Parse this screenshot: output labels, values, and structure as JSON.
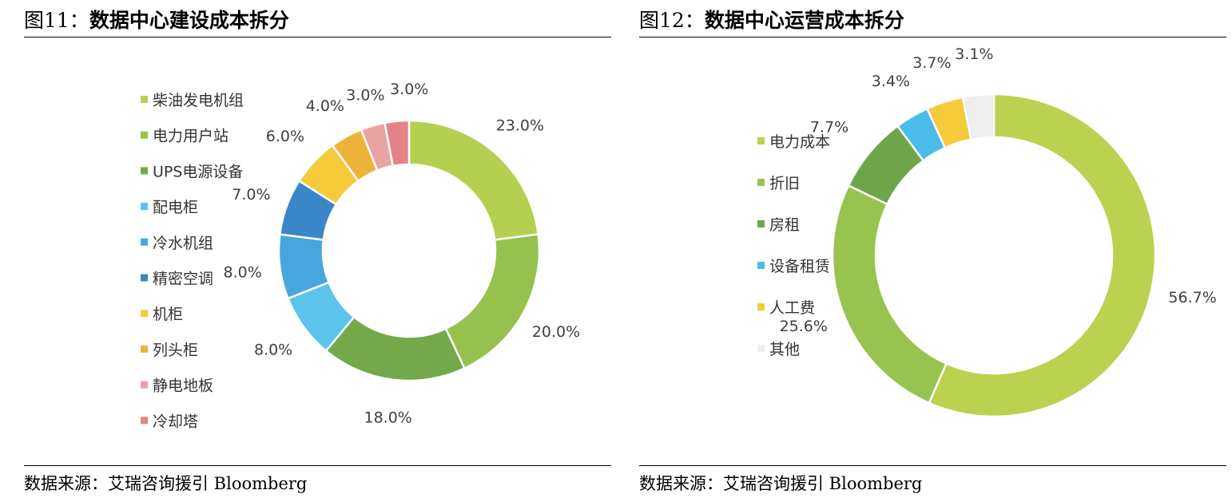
{
  "figures": [
    {
      "number": "图11：",
      "title": "数据中心建设成本拆分",
      "source": "数据来源：艾瑞咨询援引 Bloomberg"
    },
    {
      "number": "图12：",
      "title": "数据中心运营成本拆分",
      "source": "数据来源：艾瑞咨询援引 Bloomberg"
    }
  ],
  "chart_data": [
    {
      "type": "pie",
      "subtype": "donut",
      "legend_position": "left",
      "categories": [
        "柴油发电机组",
        "电力用户站",
        "UPS电源设备",
        "配电柜",
        "冷水机组",
        "精密空调",
        "机柜",
        "列头柜",
        "静电地板",
        "冷却塔"
      ],
      "values": [
        23.0,
        20.0,
        18.0,
        8.0,
        8.0,
        7.0,
        6.0,
        4.0,
        3.0,
        3.0
      ],
      "labels": [
        "23.0%",
        "20.0%",
        "18.0%",
        "8.0%",
        "8.0%",
        "7.0%",
        "6.0%",
        "4.0%",
        "3.0%",
        "3.0%"
      ],
      "colors": [
        "#b5cf4f",
        "#97c14f",
        "#73a94a",
        "#5cc3ea",
        "#47a7dd",
        "#3b86c6",
        "#f5cb3c",
        "#eeb33a",
        "#e9a3a3",
        "#e58287"
      ]
    },
    {
      "type": "pie",
      "subtype": "donut",
      "legend_position": "left",
      "categories": [
        "电力成本",
        "折旧",
        "房租",
        "设备租赁",
        "人工费",
        "其他"
      ],
      "values": [
        56.7,
        25.6,
        7.7,
        3.4,
        3.7,
        3.1
      ],
      "labels": [
        "56.7%",
        "25.6%",
        "7.7%",
        "3.4%",
        "3.7%",
        "3.1%"
      ],
      "colors": [
        "#bad250",
        "#99c34f",
        "#6ea54a",
        "#4bbbe8",
        "#f5cb3c",
        "#eeeeee"
      ]
    }
  ]
}
